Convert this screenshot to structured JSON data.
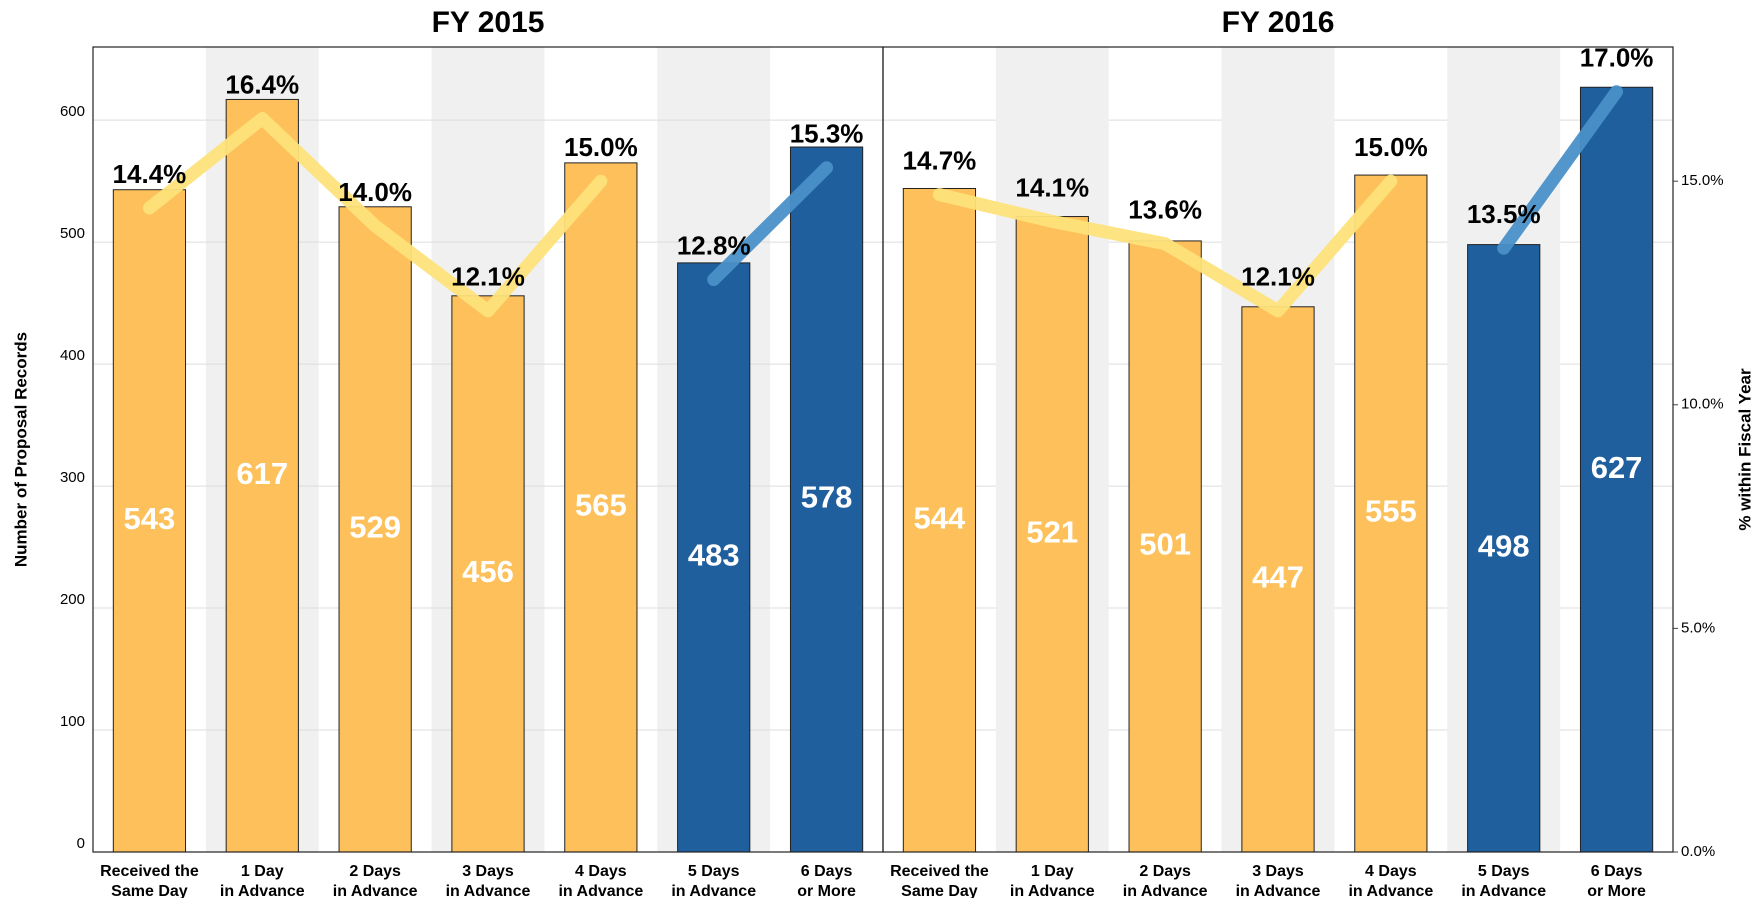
{
  "chart_data": [
    {
      "type": "bar",
      "title": "FY 2015",
      "categories": [
        "Received the Same Day",
        "1 Day in Advance",
        "2 Days in Advance",
        "3 Days in Advance",
        "4 Days in Advance",
        "5 Days in Advance",
        "6 Days or More"
      ],
      "values": [
        543,
        617,
        529,
        456,
        565,
        483,
        578
      ],
      "colors": [
        "#fdc05a",
        "#fdc05a",
        "#fdc05a",
        "#fdc05a",
        "#fdc05a",
        "#1f5f9e",
        "#1f5f9e"
      ],
      "series": [
        {
          "axis": "y2",
          "color": "#fde27a",
          "values": [
            14.4,
            16.4,
            14.0,
            12.1,
            15.0,
            null,
            null
          ],
          "value_labels": [
            "14.4%",
            "16.4%",
            "14.0%",
            "12.1%",
            "15.0%",
            null,
            null
          ]
        },
        {
          "axis": "y2",
          "color": "#4a90c8",
          "values": [
            null,
            null,
            null,
            null,
            null,
            12.8,
            15.3
          ],
          "value_labels": [
            null,
            null,
            null,
            null,
            null,
            "12.8%",
            "15.3%"
          ]
        }
      ],
      "ylabel": "Number of Proposal Records",
      "ylim": [
        0,
        660
      ],
      "yticks": [
        0,
        100,
        200,
        300,
        400,
        500,
        600
      ],
      "y2lim": [
        0,
        18
      ]
    },
    {
      "type": "bar",
      "title": "FY 2016",
      "categories": [
        "Received the Same Day",
        "1 Day in Advance",
        "2 Days in Advance",
        "3 Days in Advance",
        "4 Days in Advance",
        "5 Days in Advance",
        "6 Days or More"
      ],
      "values": [
        544,
        521,
        501,
        447,
        555,
        498,
        627
      ],
      "colors": [
        "#fdc05a",
        "#fdc05a",
        "#fdc05a",
        "#fdc05a",
        "#fdc05a",
        "#1f5f9e",
        "#1f5f9e"
      ],
      "series": [
        {
          "axis": "y2",
          "color": "#fde27a",
          "values": [
            14.7,
            14.1,
            13.6,
            12.1,
            15.0,
            null,
            null
          ],
          "value_labels": [
            "14.7%",
            "14.1%",
            "13.6%",
            "12.1%",
            "15.0%",
            null,
            null
          ]
        },
        {
          "axis": "y2",
          "color": "#4a90c8",
          "values": [
            null,
            null,
            null,
            null,
            null,
            13.5,
            17.0
          ],
          "value_labels": [
            null,
            null,
            null,
            null,
            null,
            "13.5%",
            "17.0%"
          ]
        }
      ],
      "y2label": "% within Fiscal Year",
      "ylim": [
        0,
        660
      ],
      "y2lim": [
        0,
        18
      ],
      "y2ticks": [
        {
          "value": 0,
          "label": "0.0%"
        },
        {
          "value": 5,
          "label": "5.0%"
        },
        {
          "value": 10,
          "label": "10.0%"
        },
        {
          "value": 15,
          "label": "15.0%"
        }
      ]
    }
  ]
}
